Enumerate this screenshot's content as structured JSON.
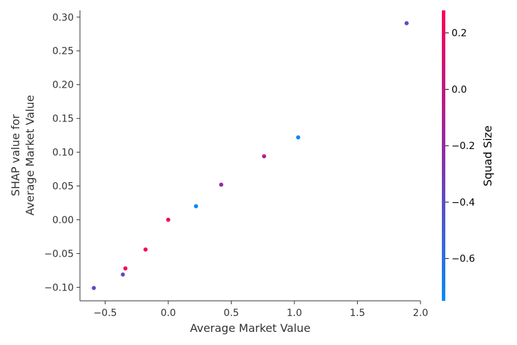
{
  "chart_data": {
    "type": "scatter",
    "title": "",
    "xlabel": "Average Market Value",
    "ylabel_lines": [
      "SHAP value for",
      "Average Market Value"
    ],
    "xlim": [
      -0.7,
      2.0
    ],
    "ylim": [
      -0.12,
      0.31
    ],
    "x_ticks": [
      -0.5,
      0.0,
      0.5,
      1.0,
      1.5,
      2.0
    ],
    "x_tick_labels": [
      "−0.5",
      "0.0",
      "0.5",
      "1.0",
      "1.5",
      "2.0"
    ],
    "y_ticks": [
      -0.1,
      -0.05,
      0.0,
      0.05,
      0.1,
      0.15,
      0.2,
      0.25,
      0.3
    ],
    "y_tick_labels": [
      "−0.10",
      "−0.05",
      "0.00",
      "0.05",
      "0.10",
      "0.15",
      "0.20",
      "0.25",
      "0.30"
    ],
    "grid": false,
    "points": [
      {
        "x": -0.59,
        "y": -0.101,
        "color_value": -0.4
      },
      {
        "x": -0.36,
        "y": -0.081,
        "color_value": -0.4
      },
      {
        "x": -0.34,
        "y": -0.072,
        "color_value": 0.25
      },
      {
        "x": -0.18,
        "y": -0.044,
        "color_value": 0.25
      },
      {
        "x": 0.0,
        "y": 0.0,
        "color_value": 0.25
      },
      {
        "x": 0.22,
        "y": 0.02,
        "color_value": -0.72
      },
      {
        "x": 0.42,
        "y": 0.052,
        "color_value": -0.2
      },
      {
        "x": 0.76,
        "y": 0.094,
        "color_value": -0.1
      },
      {
        "x": 1.03,
        "y": 0.122,
        "color_value": -0.72
      },
      {
        "x": 1.89,
        "y": 0.291,
        "color_value": -0.4
      }
    ],
    "colorbar": {
      "label": "Squad Size",
      "range": [
        -0.75,
        0.28
      ],
      "ticks": [
        0.2,
        0.0,
        -0.2,
        -0.4,
        -0.6
      ],
      "tick_labels": [
        "0.2",
        "0.0",
        "−0.2",
        "−0.4",
        "−0.6"
      ],
      "color_low": "#008bfb",
      "color_mid": "#8c2ea8",
      "color_high": "#ff0052"
    },
    "axis_color": "#333333"
  }
}
